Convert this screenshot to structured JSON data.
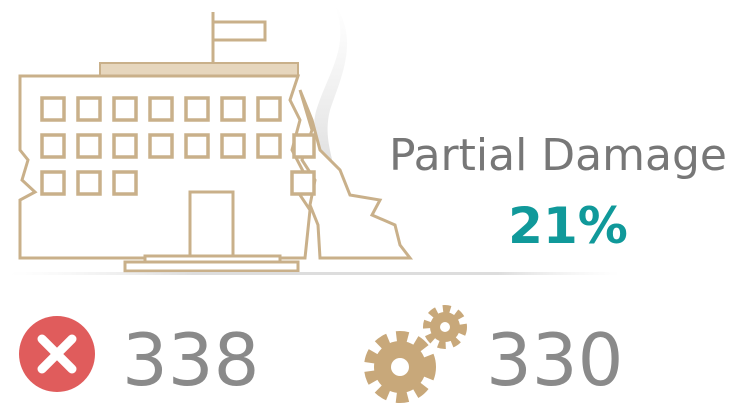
{
  "status": {
    "label": "Partial Damage",
    "percent": "21%"
  },
  "stats": [
    {
      "value": 338
    },
    {
      "value": 330
    }
  ]
}
